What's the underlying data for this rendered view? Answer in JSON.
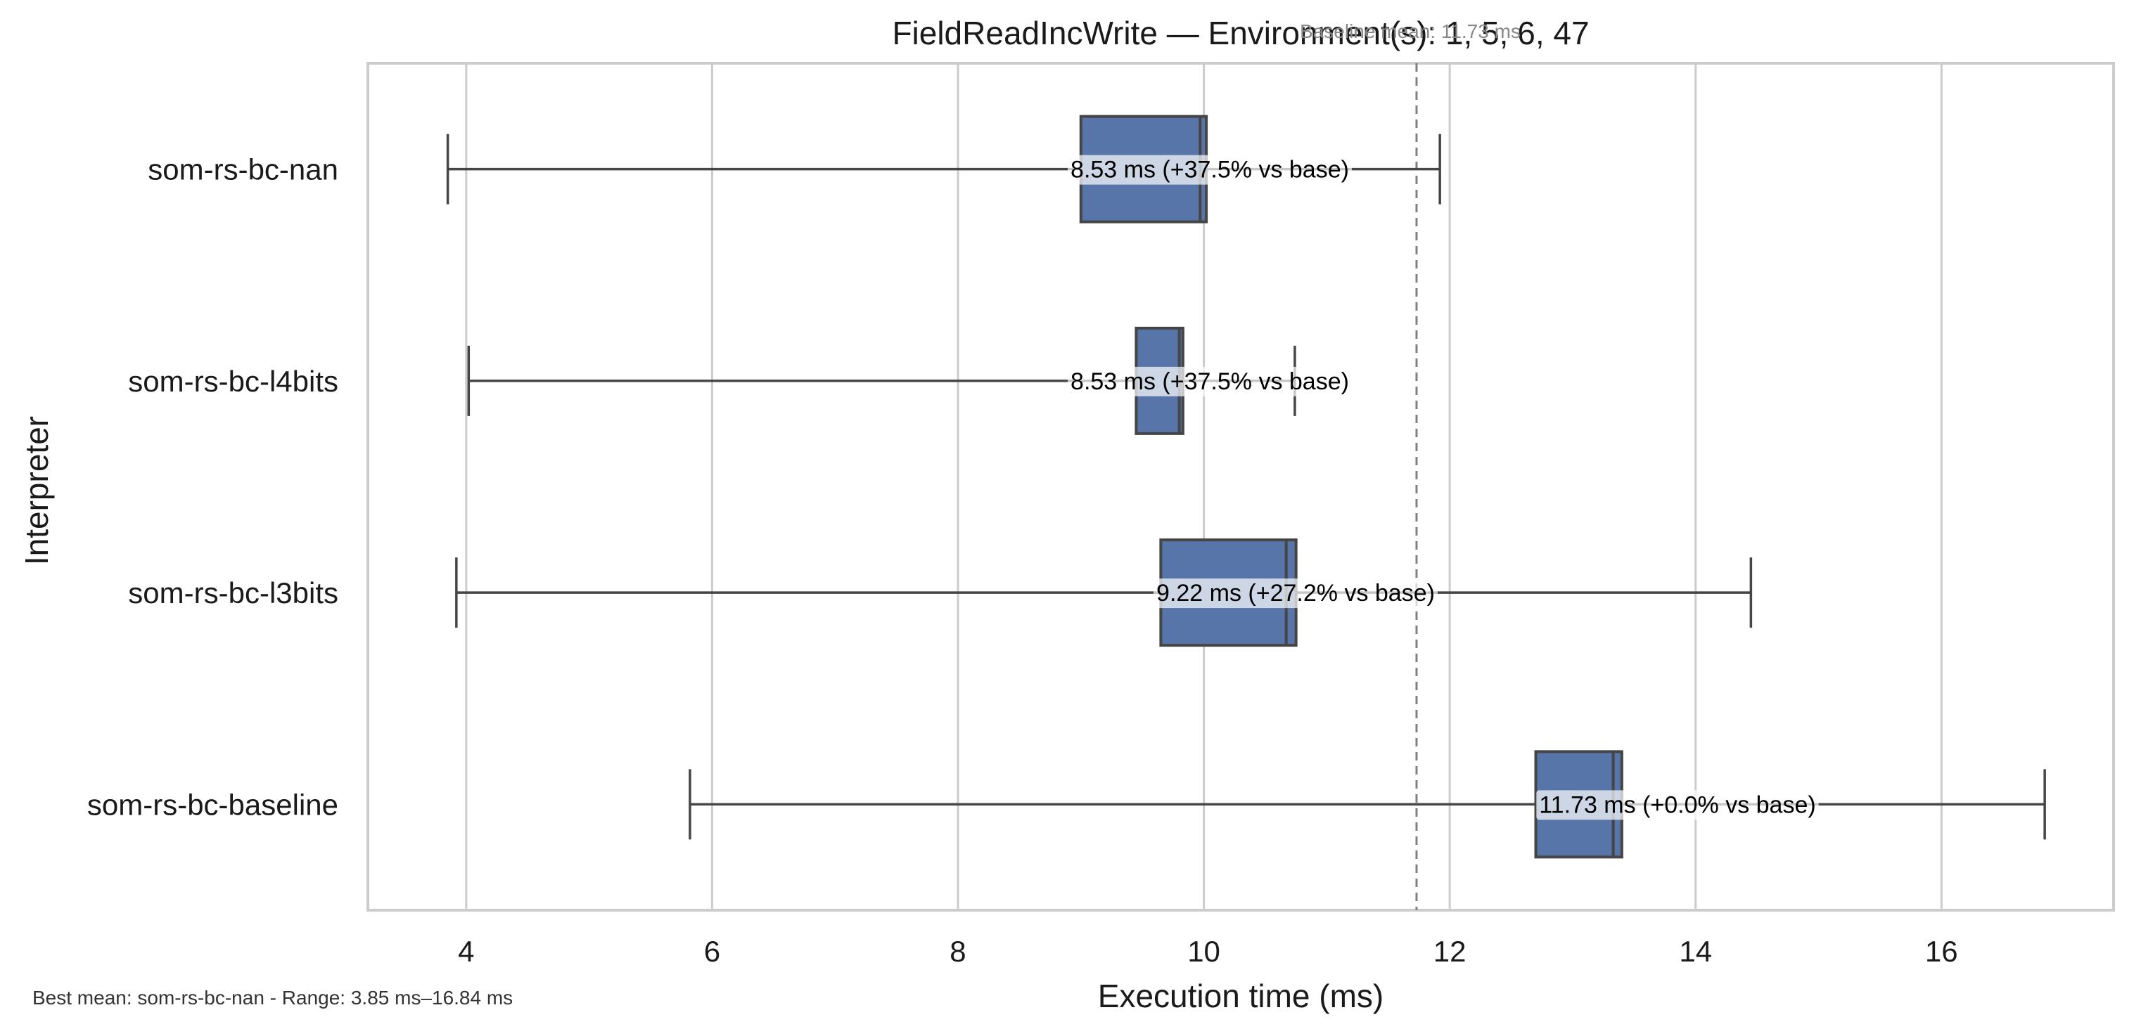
{
  "chart_data": {
    "type": "box",
    "orientation": "horizontal",
    "title": "FieldReadIncWrite — Environment(s): 1, 5, 6, 47",
    "xlabel": "Execution time (ms)",
    "ylabel": "Interpreter",
    "xlim": [
      3.2,
      17.4
    ],
    "xticks": [
      4,
      6,
      8,
      10,
      12,
      14,
      16
    ],
    "grid": "vertical",
    "baseline": {
      "value": 11.73,
      "label": "Baseline mean: 11.73 ms"
    },
    "categories": [
      "som-rs-bc-nan",
      "som-rs-bc-l4bits",
      "som-rs-bc-l3bits",
      "som-rs-bc-baseline"
    ],
    "boxes": [
      {
        "name": "som-rs-bc-nan",
        "whisker_low": 3.85,
        "q1": 9.0,
        "median": 9.97,
        "q3": 10.02,
        "whisker_high": 11.92,
        "annotation": "8.53 ms  (+37.5% vs base)"
      },
      {
        "name": "som-rs-bc-l4bits",
        "whisker_low": 4.02,
        "q1": 9.45,
        "median": 9.8,
        "q3": 9.83,
        "whisker_high": 10.74,
        "annotation": "8.53 ms  (+37.5% vs base)"
      },
      {
        "name": "som-rs-bc-l3bits",
        "whisker_low": 3.92,
        "q1": 9.65,
        "median": 10.67,
        "q3": 10.75,
        "whisker_high": 14.45,
        "annotation": "9.22 ms  (+27.2% vs base)"
      },
      {
        "name": "som-rs-bc-baseline",
        "whisker_low": 5.82,
        "q1": 12.7,
        "median": 13.33,
        "q3": 13.4,
        "whisker_high": 16.84,
        "annotation": "11.73 ms  (+0.0% vs base)"
      }
    ],
    "footnote": "Best mean: som-rs-bc-nan - Range: 3.85 ms–16.84 ms"
  },
  "colors": {
    "box_fill": "#5875a9",
    "box_edge": "#454545",
    "grid": "#cccccc",
    "frame": "#cccccc",
    "baseline_line": "#808080",
    "label_bg": "#ffffff",
    "text": "#1a1a1a"
  }
}
